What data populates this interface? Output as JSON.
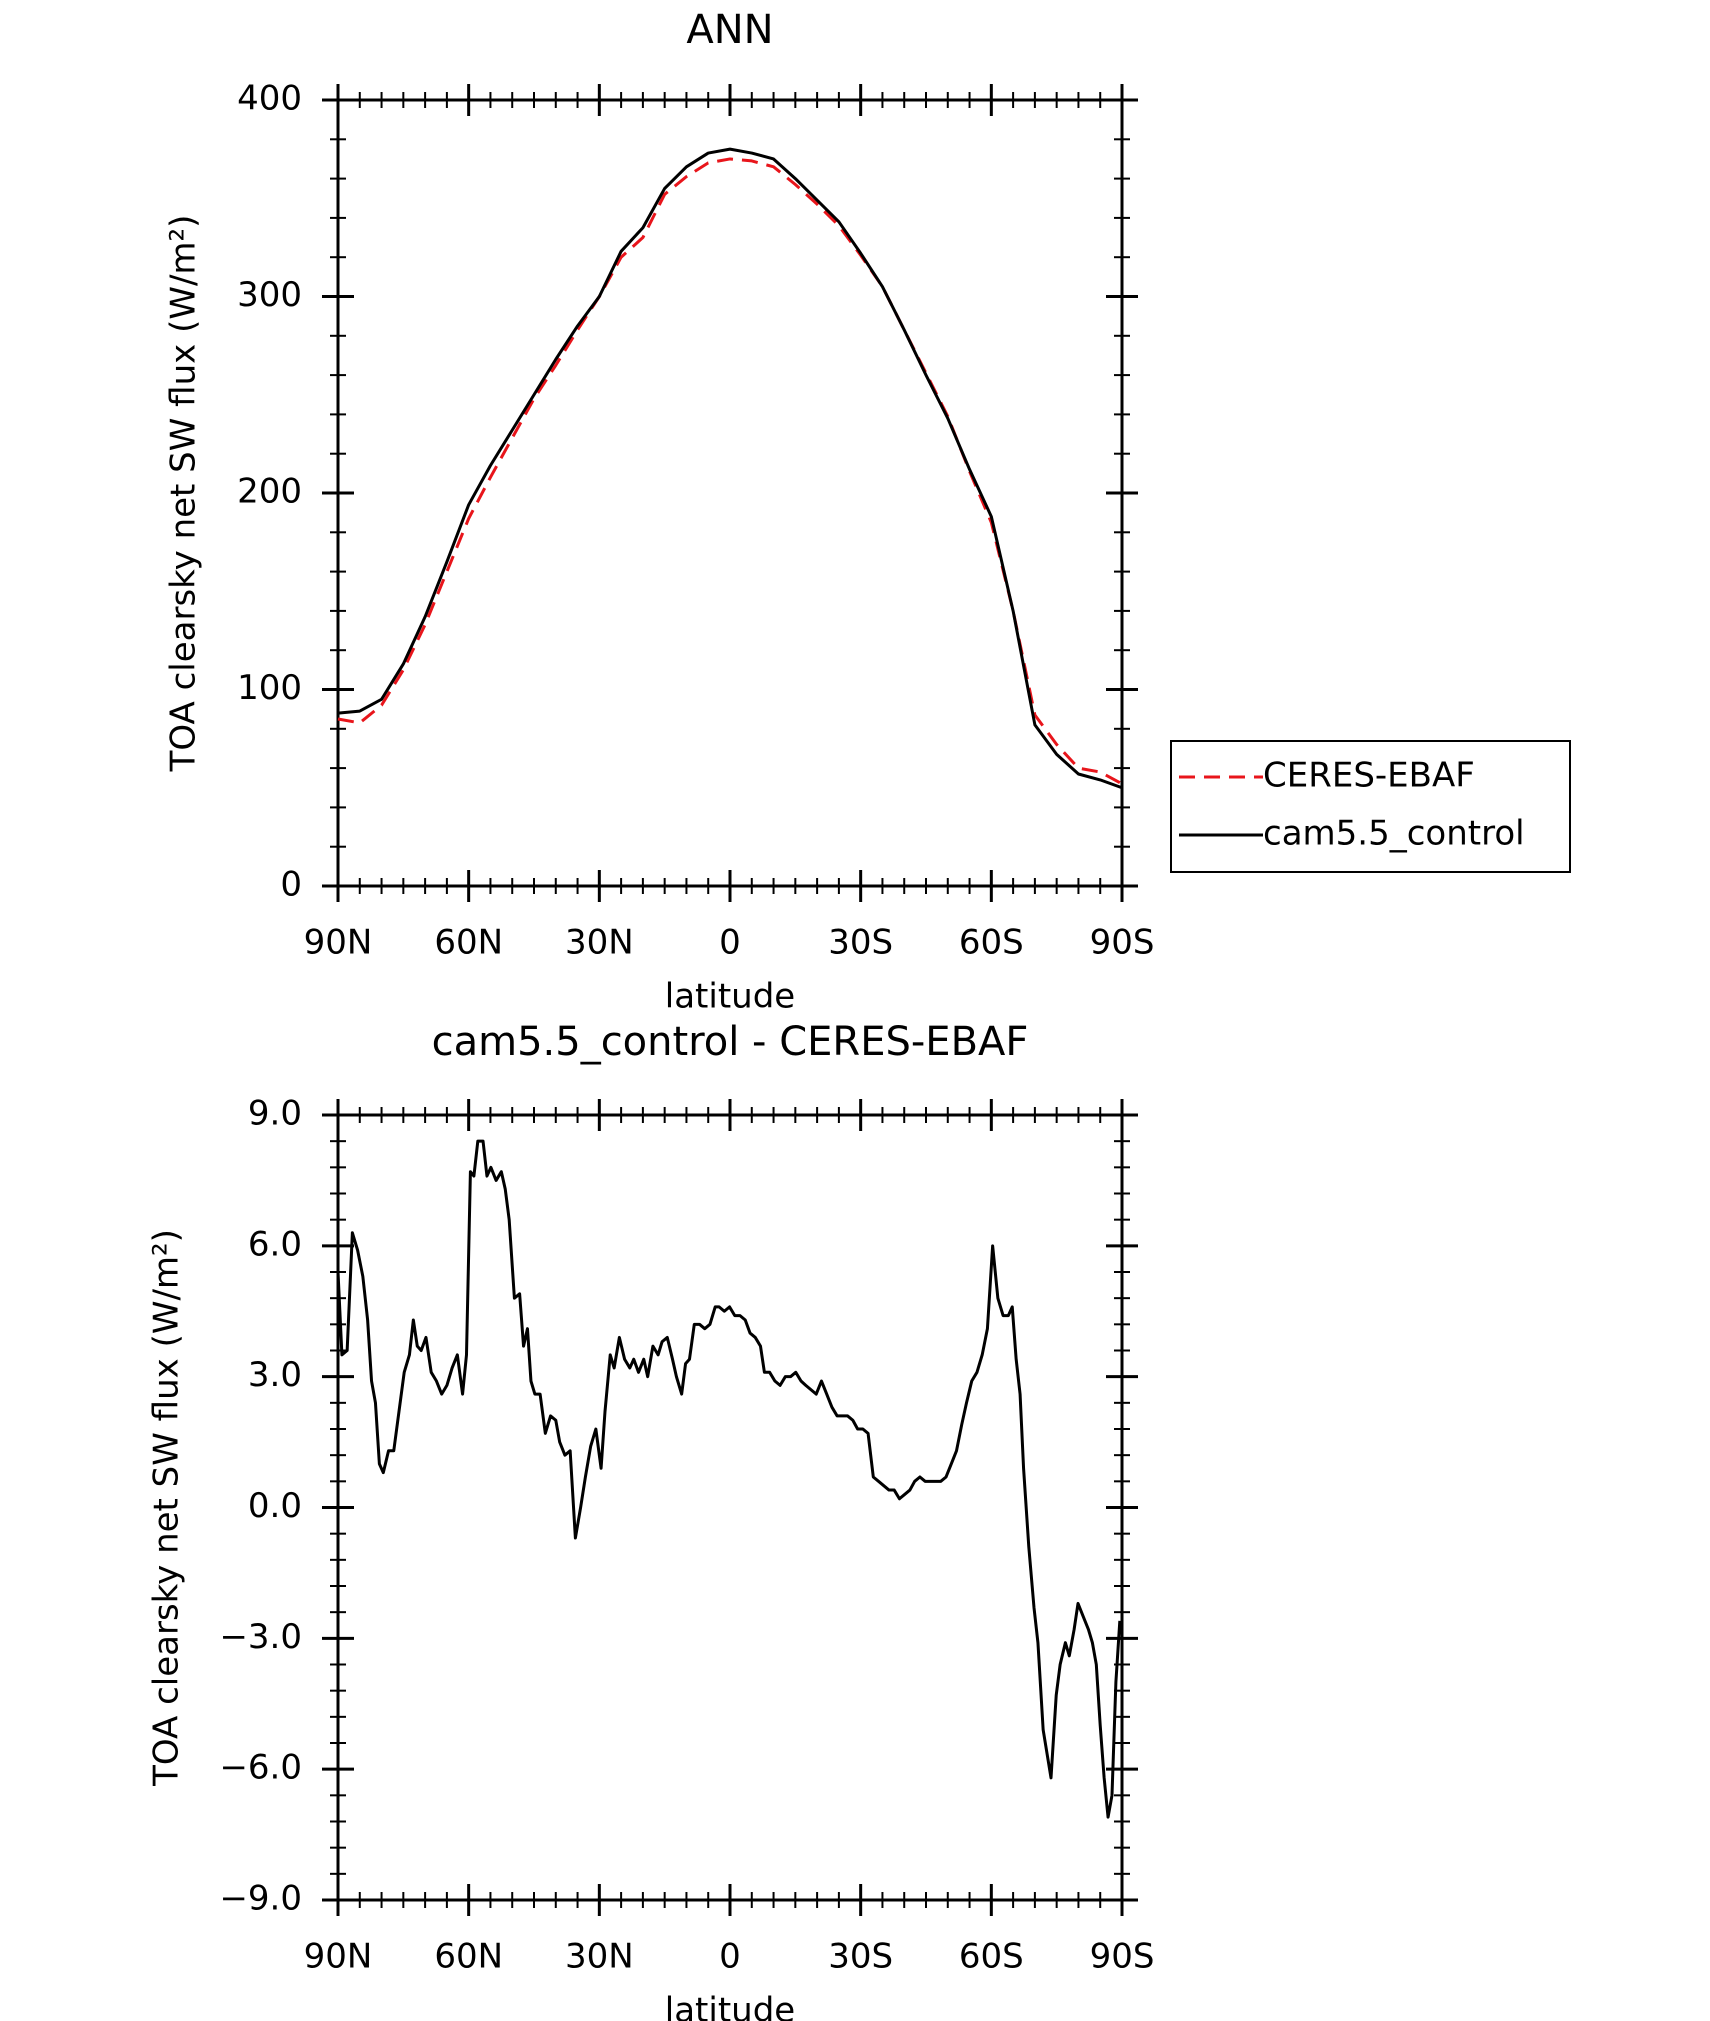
{
  "chart_data": [
    {
      "type": "line",
      "title": "ANN",
      "x_label": "latitude",
      "y_label": "TOA clearsky net SW flux (W/m²)",
      "x": [
        90,
        85,
        80,
        75,
        70,
        65,
        60,
        55,
        50,
        45,
        40,
        35,
        30,
        25,
        20,
        15,
        10,
        5,
        0,
        -5,
        -10,
        -15,
        -20,
        -25,
        -30,
        -35,
        -40,
        -45,
        -50,
        -55,
        -60,
        -65,
        -70,
        -75,
        -80,
        -85,
        -90
      ],
      "series": [
        {
          "name": "CERES-EBAF",
          "color": "#e8151b",
          "linestyle": "dashed",
          "values": [
            85,
            83,
            92,
            110,
            133,
            160,
            187,
            208,
            228,
            248,
            265,
            283,
            300,
            320,
            330,
            352,
            361,
            368,
            370,
            369,
            366,
            357,
            347,
            336,
            321,
            305,
            283,
            261,
            239,
            211,
            185,
            140,
            87,
            72,
            60,
            58,
            52
          ]
        },
        {
          "name": "cam5.5_control",
          "color": "#000000",
          "linestyle": "solid",
          "values": [
            88,
            89,
            95,
            113,
            137,
            165,
            194,
            214,
            232,
            250,
            268,
            285,
            300,
            323,
            335,
            355,
            366,
            373,
            375,
            373,
            370,
            360,
            349,
            338,
            322,
            305,
            283,
            260,
            238,
            212,
            188,
            140,
            82,
            67,
            57,
            54,
            50
          ]
        }
      ],
      "xlim": [
        90,
        -90
      ],
      "xticks": [
        {
          "value": 90,
          "label": "90N"
        },
        {
          "value": 60,
          "label": "60N"
        },
        {
          "value": 30,
          "label": "30N"
        },
        0,
        {
          "value": -30,
          "label": "30S"
        },
        {
          "value": -60,
          "label": "60S"
        },
        {
          "value": -90,
          "label": "90S"
        }
      ],
      "ylim": [
        0,
        400
      ],
      "yticks": [
        0,
        100,
        200,
        300,
        400
      ],
      "legend": "right"
    },
    {
      "type": "line",
      "title": "cam5.5_control - CERES-EBAF",
      "x_label": "latitude",
      "y_label": "TOA clearsky net SW flux (W/m²)",
      "color": "#000000",
      "x": [
        90,
        89.1,
        87.9,
        86.7,
        85.5,
        84.3,
        83.2,
        82.3,
        81.4,
        80.5,
        79.6,
        78.4,
        77.2,
        76.0,
        74.8,
        73.6,
        72.7,
        71.8,
        70.9,
        69.8,
        68.6,
        67.4,
        66.2,
        65.0,
        63.8,
        62.6,
        61.4,
        60.5,
        59.6,
        58.8,
        57.9,
        56.7,
        55.8,
        54.9,
        53.7,
        52.5,
        51.6,
        50.7,
        49.5,
        48.3,
        47.4,
        46.5,
        45.7,
        44.8,
        43.6,
        42.4,
        41.2,
        40.0,
        39.1,
        37.9,
        36.7,
        35.5,
        34.3,
        33.2,
        32.0,
        30.8,
        29.6,
        28.7,
        27.5,
        26.6,
        25.4,
        24.2,
        23.0,
        22.1,
        21.0,
        19.8,
        18.9,
        17.7,
        16.5,
        15.6,
        14.4,
        13.2,
        12.3,
        11.1,
        10.2,
        9.3,
        8.2,
        7.0,
        5.8,
        4.6,
        3.4,
        2.5,
        1.3,
        0.1,
        -1.1,
        -2.3,
        -3.5,
        -4.6,
        -5.8,
        -7.0,
        -7.9,
        -9.1,
        -10.3,
        -11.5,
        -12.7,
        -13.9,
        -15.1,
        -16.3,
        -17.4,
        -18.6,
        -19.8,
        -21.0,
        -22.2,
        -23.4,
        -24.6,
        -25.8,
        -27.0,
        -28.2,
        -29.3,
        -30.5,
        -31.7,
        -32.9,
        -34.1,
        -35.3,
        -36.5,
        -37.7,
        -38.9,
        -40.1,
        -41.3,
        -42.4,
        -43.6,
        -44.8,
        -46.0,
        -47.2,
        -48.4,
        -49.6,
        -50.8,
        -52.0,
        -53.2,
        -54.3,
        -55.5,
        -56.7,
        -57.9,
        -59.1,
        -60.3,
        -61.5,
        -62.7,
        -63.9,
        -64.8,
        -65.7,
        -66.6,
        -67.4,
        -68.6,
        -69.8,
        -70.7,
        -71.9,
        -73.7,
        -74.9,
        -75.8,
        -77.0,
        -77.9,
        -79.0,
        -79.9,
        -81.1,
        -82.3,
        -83.2,
        -84.1,
        -85.0,
        -85.9,
        -86.8,
        -87.7,
        -88.6,
        -89.5
      ],
      "values": [
        5.4,
        3.5,
        3.6,
        6.3,
        5.9,
        5.3,
        4.3,
        2.9,
        2.4,
        1.0,
        0.8,
        1.3,
        1.3,
        2.2,
        3.1,
        3.5,
        4.3,
        3.7,
        3.6,
        3.9,
        3.1,
        2.9,
        2.6,
        2.8,
        3.2,
        3.5,
        2.6,
        3.5,
        7.7,
        7.6,
        8.4,
        8.4,
        7.6,
        7.8,
        7.5,
        7.7,
        7.3,
        6.6,
        4.8,
        4.9,
        3.7,
        4.1,
        2.9,
        2.6,
        2.6,
        1.7,
        2.1,
        2.0,
        1.5,
        1.2,
        1.3,
        -0.7,
        0.0,
        0.7,
        1.4,
        1.8,
        0.9,
        2.2,
        3.5,
        3.2,
        3.9,
        3.4,
        3.2,
        3.4,
        3.1,
        3.4,
        3.0,
        3.7,
        3.5,
        3.8,
        3.9,
        3.4,
        3.0,
        2.6,
        3.3,
        3.4,
        4.2,
        4.2,
        4.1,
        4.2,
        4.6,
        4.6,
        4.5,
        4.6,
        4.4,
        4.4,
        4.3,
        4.0,
        3.9,
        3.7,
        3.1,
        3.1,
        2.9,
        2.8,
        3.0,
        3.0,
        3.1,
        2.9,
        2.8,
        2.7,
        2.6,
        2.9,
        2.6,
        2.3,
        2.1,
        2.1,
        2.1,
        2.0,
        1.8,
        1.8,
        1.7,
        0.7,
        0.6,
        0.5,
        0.4,
        0.4,
        0.2,
        0.3,
        0.4,
        0.6,
        0.7,
        0.6,
        0.6,
        0.6,
        0.6,
        0.7,
        1.0,
        1.3,
        1.9,
        2.4,
        2.9,
        3.1,
        3.5,
        4.1,
        6.0,
        4.8,
        4.4,
        4.4,
        4.6,
        3.4,
        2.6,
        0.9,
        -0.9,
        -2.3,
        -3.1,
        -5.1,
        -6.2,
        -4.3,
        -3.6,
        -3.1,
        -3.4,
        -2.8,
        -2.2,
        -2.5,
        -2.8,
        -3.1,
        -3.6,
        -5.0,
        -6.2,
        -7.1,
        -6.6,
        -4.0,
        -2.6
      ],
      "xlim": [
        90,
        -90
      ],
      "xticks": [
        {
          "value": 90,
          "label": "90N"
        },
        {
          "value": 60,
          "label": "60N"
        },
        {
          "value": 30,
          "label": "30N"
        },
        0,
        {
          "value": -30,
          "label": "30S"
        },
        {
          "value": -60,
          "label": "60S"
        },
        {
          "value": -90,
          "label": "90S"
        }
      ],
      "ylim": [
        -9,
        9
      ],
      "yticks": [
        {
          "value": -9,
          "label": "−9.0"
        },
        {
          "value": -6,
          "label": "−6.0"
        },
        {
          "value": -3,
          "label": "−3.0"
        },
        {
          "value": 0,
          "label": "0.0"
        },
        {
          "value": 3,
          "label": "3.0"
        },
        {
          "value": 6,
          "label": "6.0"
        },
        {
          "value": 9,
          "label": "9.0"
        }
      ]
    }
  ]
}
